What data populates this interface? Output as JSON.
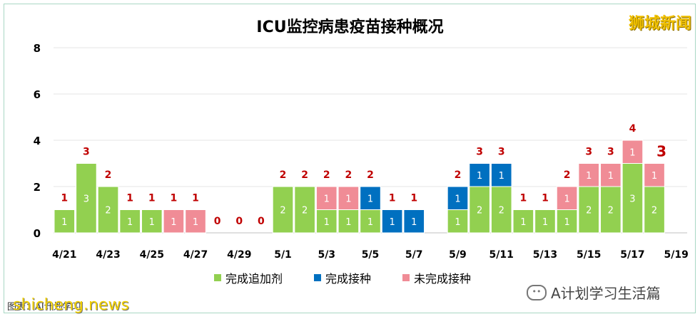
{
  "brand": "狮城新闻",
  "footer": {
    "caption": "图表：AI计划学习",
    "site": "shicheng.news"
  },
  "watermark": "A计划学习生活篇",
  "chart_data": {
    "type": "bar",
    "title": "ICU监控病患疫苗接种概况",
    "ylim": [
      0,
      8
    ],
    "yticks": [
      "0",
      "2",
      "4",
      "6",
      "8"
    ],
    "categories": [
      "4/21",
      "4/22",
      "4/23",
      "4/24",
      "4/25",
      "4/26",
      "4/27",
      "4/28",
      "4/29",
      "4/30",
      "5/1",
      "5/2",
      "5/3",
      "5/4",
      "5/5",
      "5/6",
      "5/7",
      "5/8",
      "5/9",
      "5/10",
      "5/11",
      "5/12",
      "5/13",
      "5/14",
      "5/15",
      "5/16",
      "5/17",
      "5/18"
    ],
    "xtick_labels": [
      "4/21",
      "4/23",
      "4/25",
      "4/27",
      "4/29",
      "5/1",
      "5/3",
      "5/5",
      "5/7",
      "5/9",
      "5/11",
      "5/13",
      "5/15",
      "5/17",
      "5/19"
    ],
    "series": [
      {
        "name": "完成追加剂",
        "color": "#92d050",
        "values": [
          1,
          3,
          2,
          1,
          1,
          0,
          0,
          0,
          0,
          0,
          2,
          2,
          1,
          1,
          1,
          0,
          0,
          0,
          1,
          2,
          2,
          1,
          1,
          1,
          2,
          2,
          3,
          2
        ]
      },
      {
        "name": "完成接种",
        "color": "#0070c0",
        "values": [
          0,
          0,
          0,
          0,
          0,
          0,
          0,
          0,
          0,
          0,
          0,
          0,
          0,
          0,
          1,
          1,
          1,
          0,
          1,
          1,
          1,
          0,
          0,
          0,
          0,
          0,
          0,
          0
        ]
      },
      {
        "name": "未完成接种",
        "color": "#f08c96",
        "values": [
          0,
          0,
          0,
          0,
          0,
          1,
          1,
          0,
          0,
          0,
          0,
          0,
          1,
          1,
          0,
          0,
          0,
          0,
          0,
          0,
          0,
          0,
          0,
          1,
          1,
          1,
          1,
          1
        ]
      }
    ],
    "totals": [
      1,
      3,
      2,
      1,
      1,
      1,
      1,
      0,
      0,
      0,
      2,
      2,
      2,
      2,
      2,
      1,
      1,
      null,
      2,
      3,
      3,
      1,
      1,
      2,
      3,
      3,
      4,
      3
    ],
    "label_color": "#c00000",
    "legend_position": "bottom"
  }
}
